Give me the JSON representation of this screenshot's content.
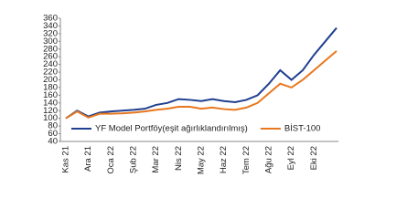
{
  "chart_data": {
    "type": "line",
    "categories": [
      "Kas 21",
      null,
      "Ara 21",
      null,
      "Oca 22",
      null,
      "Şub 22",
      null,
      "Mar 22",
      null,
      "Nis 22",
      null,
      "May 22",
      null,
      "Haz 22",
      null,
      "Tem 22",
      null,
      "Ağu 22",
      null,
      "Eyl 22",
      null,
      "Eki 22",
      null,
      null
    ],
    "series": [
      {
        "name": "YF Model Portföy(eşit ağırlıklandırılmış)",
        "color": "#1f3f8f",
        "values": [
          100,
          120,
          105,
          115,
          118,
          120,
          122,
          125,
          135,
          140,
          150,
          148,
          145,
          150,
          145,
          142,
          148,
          160,
          190,
          225,
          200,
          225,
          265,
          300,
          335
        ]
      },
      {
        "name": "BİST-100",
        "color": "#e8771e",
        "values": [
          100,
          118,
          102,
          112,
          112,
          113,
          115,
          118,
          122,
          125,
          130,
          130,
          125,
          128,
          124,
          122,
          128,
          140,
          165,
          190,
          180,
          200,
          225,
          250,
          275
        ]
      }
    ],
    "ylim": [
      40,
      360
    ],
    "yticks": [
      40,
      60,
      80,
      100,
      120,
      140,
      160,
      180,
      200,
      220,
      240,
      260,
      280,
      300,
      320,
      340,
      360
    ],
    "grid": false,
    "legend": "bottom"
  }
}
